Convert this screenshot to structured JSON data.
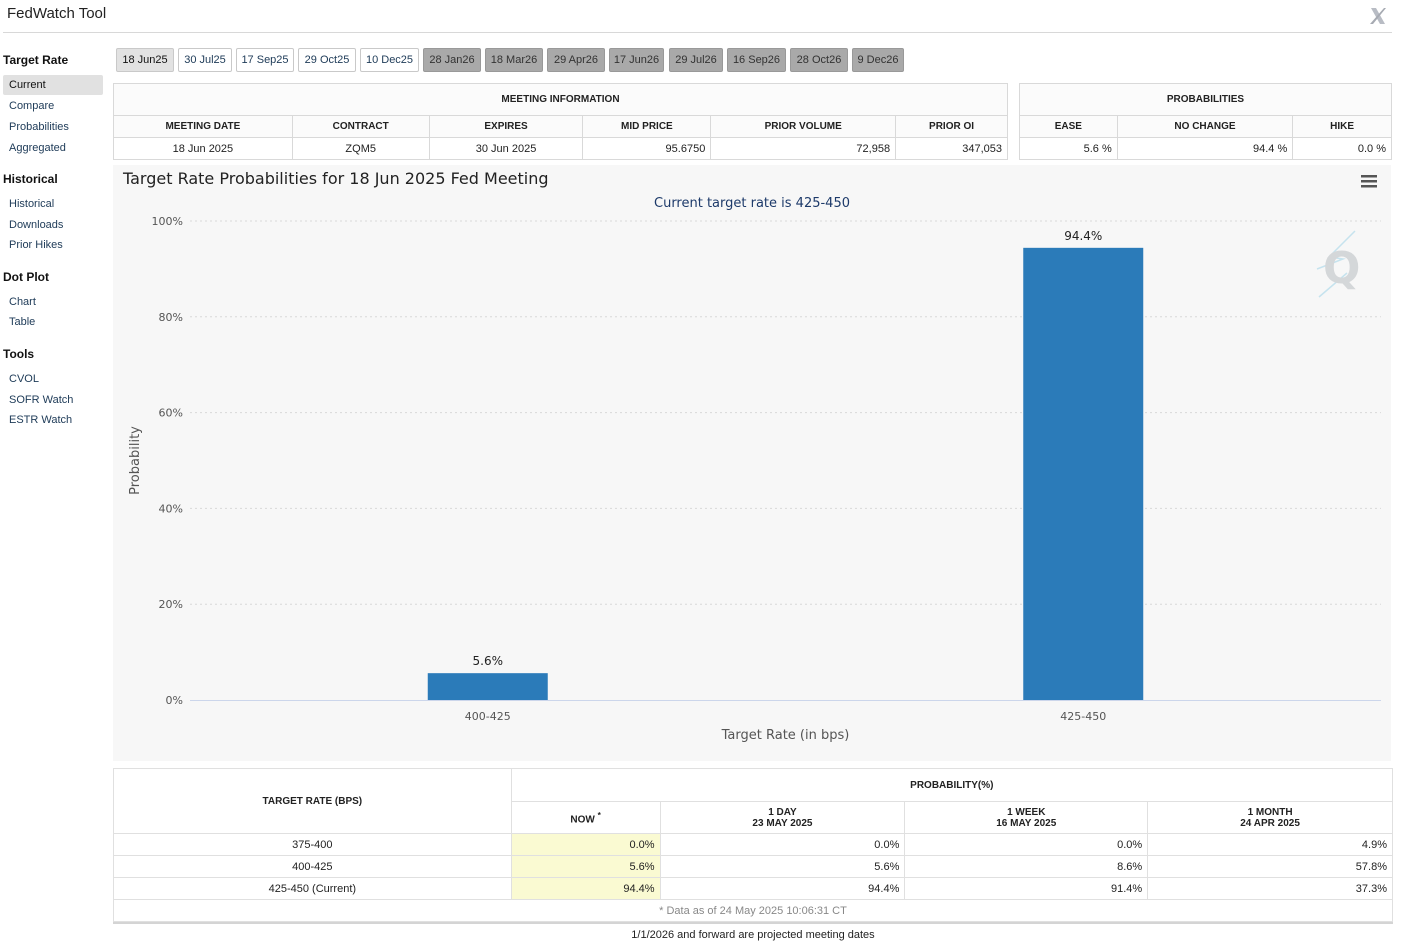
{
  "app": {
    "title": "FedWatch Tool"
  },
  "sidebar": {
    "sections": [
      {
        "heading": "Target Rate",
        "items": [
          "Current",
          "Compare",
          "Probabilities",
          "Aggregated"
        ]
      },
      {
        "heading": "Historical",
        "items": [
          "Historical",
          "Downloads",
          "Prior Hikes"
        ]
      },
      {
        "heading": "Dot Plot",
        "items": [
          "Chart",
          "Table"
        ]
      },
      {
        "heading": "Tools",
        "items": [
          "CVOL",
          "SOFR Watch",
          "ESTR Watch"
        ]
      }
    ],
    "active_item": "Current"
  },
  "tabs": [
    {
      "label": "18 Jun25",
      "state": "selected"
    },
    {
      "label": "30 Jul25",
      "state": "normal"
    },
    {
      "label": "17 Sep25",
      "state": "normal"
    },
    {
      "label": "29 Oct25",
      "state": "normal"
    },
    {
      "label": "10 Dec25",
      "state": "normal"
    },
    {
      "label": "28 Jan26",
      "state": "future"
    },
    {
      "label": "18 Mar26",
      "state": "future"
    },
    {
      "label": "29 Apr26",
      "state": "future"
    },
    {
      "label": "17 Jun26",
      "state": "future"
    },
    {
      "label": "29 Jul26",
      "state": "future"
    },
    {
      "label": "16 Sep26",
      "state": "future"
    },
    {
      "label": "28 Oct26",
      "state": "future"
    },
    {
      "label": "9 Dec26",
      "state": "future"
    }
  ],
  "meeting_info": {
    "heading": "MEETING INFORMATION",
    "columns": [
      "MEETING DATE",
      "CONTRACT",
      "EXPIRES",
      "MID PRICE",
      "PRIOR VOLUME",
      "PRIOR OI"
    ],
    "row": [
      "18 Jun 2025",
      "ZQM5",
      "30 Jun 2025",
      "95.6750",
      "72,958",
      "347,053"
    ]
  },
  "probabilities": {
    "heading": "PROBABILITIES",
    "columns": [
      "EASE",
      "NO CHANGE",
      "HIKE"
    ],
    "row": [
      "5.6 %",
      "94.4 %",
      "0.0 %"
    ]
  },
  "chart_data": {
    "type": "bar",
    "title": "Target Rate Probabilities for 18 Jun 2025 Fed Meeting",
    "subtitle": "Current target rate is 425-450",
    "xlabel": "Target Rate (in bps)",
    "ylabel": "Probability",
    "categories": [
      "400-425",
      "425-450"
    ],
    "values": [
      5.6,
      94.4
    ],
    "data_labels": [
      "5.6%",
      "94.4%"
    ],
    "ylim": [
      0,
      100
    ],
    "yticks": [
      0,
      20,
      40,
      60,
      80,
      100
    ],
    "ytick_labels": [
      "0%",
      "20%",
      "40%",
      "60%",
      "80%",
      "100%"
    ],
    "grid": true,
    "bar_color": "#2b7bb9",
    "menu_icon": "hamburger-menu-icon",
    "watermark_icon": "quikstrike-q-logo"
  },
  "prob_table": {
    "row_header": "TARGET RATE (BPS)",
    "group_header": "PROBABILITY(%)",
    "columns": [
      {
        "line1": "NOW",
        "marker": "*",
        "line2": ""
      },
      {
        "line1": "1 DAY",
        "marker": "",
        "line2": "23 MAY 2025"
      },
      {
        "line1": "1 WEEK",
        "marker": "",
        "line2": "16 MAY 2025"
      },
      {
        "line1": "1 MONTH",
        "marker": "",
        "line2": "24 APR 2025"
      }
    ],
    "rows": [
      {
        "rate": "375-400",
        "values": [
          "0.0%",
          "0.0%",
          "0.0%",
          "4.9%"
        ]
      },
      {
        "rate": "400-425",
        "values": [
          "5.6%",
          "5.6%",
          "8.6%",
          "57.8%"
        ]
      },
      {
        "rate": "425-450 (Current)",
        "values": [
          "94.4%",
          "94.4%",
          "91.4%",
          "37.3%"
        ]
      }
    ],
    "note": "* Data as of 24 May 2025 10:06:31 CT"
  },
  "footer": {
    "note": "1/1/2026 and forward are projected meeting dates"
  }
}
